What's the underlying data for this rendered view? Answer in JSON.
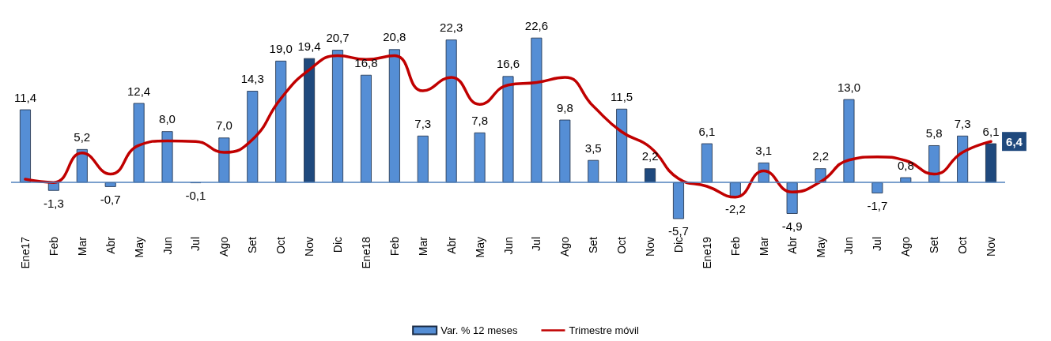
{
  "chart_data": {
    "type": "bar",
    "categories": [
      "Ene17",
      "Feb",
      "Mar",
      "Abr",
      "May",
      "Jun",
      "Jul",
      "Ago",
      "Set",
      "Oct",
      "Nov",
      "Dic",
      "Ene18",
      "Feb",
      "Mar",
      "Abr",
      "May",
      "Jun",
      "Jul",
      "Ago",
      "Set",
      "Oct",
      "Nov",
      "Dic",
      "Ene19",
      "Feb",
      "Mar",
      "Abr",
      "May",
      "Jun",
      "Jul",
      "Ago",
      "Set",
      "Oct",
      "Nov"
    ],
    "series": [
      {
        "name": "Var. % 12 meses",
        "color": "#558ed5",
        "colors": [
          "#558ed5",
          "#558ed5",
          "#558ed5",
          "#558ed5",
          "#558ed5",
          "#558ed5",
          "#558ed5",
          "#558ed5",
          "#558ed5",
          "#558ed5",
          "#1f497d",
          "#558ed5",
          "#558ed5",
          "#558ed5",
          "#558ed5",
          "#558ed5",
          "#558ed5",
          "#558ed5",
          "#558ed5",
          "#558ed5",
          "#558ed5",
          "#558ed5",
          "#1f497d",
          "#558ed5",
          "#558ed5",
          "#558ed5",
          "#558ed5",
          "#558ed5",
          "#558ed5",
          "#558ed5",
          "#558ed5",
          "#558ed5",
          "#558ed5",
          "#558ed5",
          "#1f497d"
        ],
        "values": [
          11.4,
          -1.3,
          5.2,
          -0.7,
          12.4,
          8.0,
          -0.1,
          7.0,
          14.3,
          19.0,
          19.4,
          20.7,
          16.8,
          20.8,
          7.3,
          22.3,
          7.8,
          16.6,
          22.6,
          9.8,
          3.5,
          11.5,
          2.2,
          -5.7,
          6.1,
          -2.2,
          3.1,
          -4.9,
          2.2,
          13.0,
          -1.7,
          0.8,
          5.8,
          7.3,
          6.1
        ],
        "value_labels": [
          "11,4",
          "-1,3",
          "5,2",
          "-0,7",
          "12,4",
          "8,0",
          "-0,1",
          "7,0",
          "14,3",
          "19,0",
          "19,4",
          "20,7",
          "16,8",
          "20,8",
          "7,3",
          "22,3",
          "7,8",
          "16,6",
          "22,6",
          "9,8",
          "3,5",
          "11,5",
          "2,2",
          "-5,7",
          "6,1",
          "-2,2",
          "3,1",
          "-4,9",
          "2,2",
          "13,0",
          "-1,7",
          "0,8",
          "5,8",
          "7,3",
          "6,1"
        ]
      },
      {
        "name": "Trimestre móvil",
        "type": "line",
        "color": "#c00000",
        "values": [
          0.5,
          0.0,
          4.6,
          1.3,
          5.8,
          6.5,
          6.4,
          4.7,
          6.7,
          13.1,
          17.6,
          19.8,
          19.2,
          19.8,
          14.3,
          16.4,
          12.2,
          15.2,
          15.6,
          16.4,
          11.9,
          7.9,
          5.5,
          0.6,
          -0.6,
          -2.3,
          1.8,
          -1.5,
          0.1,
          3.5,
          4.0,
          3.4,
          1.3,
          4.7,
          6.4
        ],
        "value_labels": [
          null,
          null,
          null,
          null,
          null,
          null,
          null,
          null,
          null,
          null,
          null,
          null,
          null,
          null,
          null,
          null,
          null,
          null,
          null,
          null,
          null,
          null,
          null,
          null,
          null,
          null,
          null,
          null,
          null,
          null,
          null,
          null,
          null,
          null,
          "6,4"
        ]
      }
    ],
    "ref_lines": [
      {
        "axis": "y",
        "value": 0,
        "color": "#4f81bd"
      }
    ],
    "legend": "bottom",
    "grid": false,
    "marker": "none",
    "line_style": "solid"
  }
}
